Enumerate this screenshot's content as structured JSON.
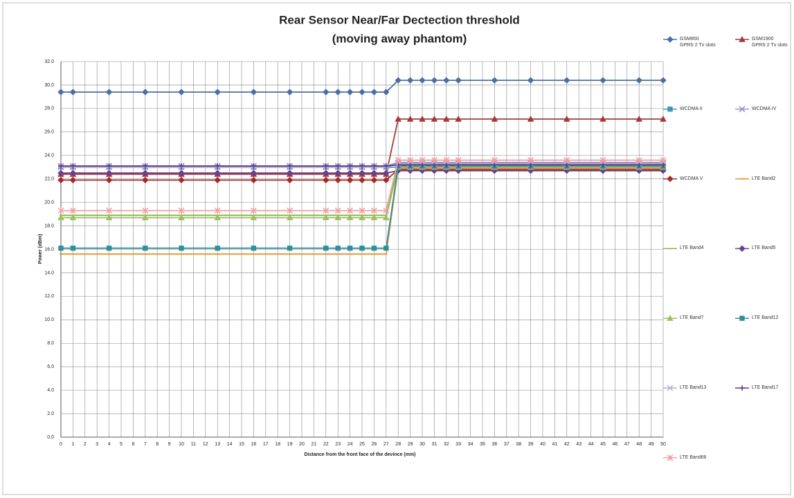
{
  "chart_data": {
    "type": "line",
    "title": "Rear Sensor Near/Far Dectection threshold",
    "subtitle": "(moving away phantom)",
    "x_label": "Distance  from the front face of the devince  (mm)",
    "y_label": "Power  (dBm)",
    "x": [
      0,
      1,
      4,
      7,
      10,
      13,
      16,
      19,
      22,
      23,
      24,
      25,
      26,
      27,
      28,
      29,
      30,
      31,
      32,
      33,
      36,
      39,
      42,
      45,
      48,
      50
    ],
    "xlim": [
      0,
      50
    ],
    "xticks": [
      0,
      1,
      2,
      3,
      4,
      5,
      6,
      7,
      8,
      9,
      10,
      11,
      12,
      13,
      14,
      15,
      16,
      17,
      18,
      19,
      20,
      21,
      22,
      23,
      24,
      25,
      26,
      27,
      28,
      29,
      30,
      31,
      32,
      33,
      34,
      35,
      36,
      37,
      38,
      39,
      40,
      41,
      42,
      43,
      44,
      45,
      46,
      47,
      48,
      49,
      50
    ],
    "ylim": [
      0,
      32
    ],
    "yticks": [
      {
        "value": 0,
        "label": "0.0"
      },
      {
        "value": 2,
        "label": "2.0"
      },
      {
        "value": 4,
        "label": "4.0"
      },
      {
        "value": 6,
        "label": "6.0"
      },
      {
        "value": 8,
        "label": "8.0"
      },
      {
        "value": 10,
        "label": "10.0"
      },
      {
        "value": 12,
        "label": "12.0"
      },
      {
        "value": 14,
        "label": "14.0"
      },
      {
        "value": 16,
        "label": "16.0"
      },
      {
        "value": 18,
        "label": "18.0"
      },
      {
        "value": 20,
        "label": "20.0"
      },
      {
        "value": 22,
        "label": "22.0"
      },
      {
        "value": 24,
        "label": "24.0"
      },
      {
        "value": 26,
        "label": "26.0"
      },
      {
        "value": 28,
        "label": "28.0"
      },
      {
        "value": 30,
        "label": "30.0"
      },
      {
        "value": 32,
        "label": "32.0"
      }
    ],
    "grid": true,
    "legend": "right",
    "series": [
      {
        "name": "GSM850\nGPRS 2 Tx slots",
        "color": "#4a6fa5",
        "marker": "diamond",
        "values": [
          29.4,
          29.4,
          29.4,
          29.4,
          29.4,
          29.4,
          29.4,
          29.4,
          29.4,
          29.4,
          29.4,
          29.4,
          29.4,
          29.4,
          30.4,
          30.4,
          30.4,
          30.4,
          30.4,
          30.4,
          30.4,
          30.4,
          30.4,
          30.4,
          30.4,
          30.4
        ]
      },
      {
        "name": "GSM1900\nGPRS 2 Tx slots",
        "color": "#a33a3a",
        "marker": "triangle",
        "values": [
          22.4,
          22.4,
          22.4,
          22.4,
          22.4,
          22.4,
          22.4,
          22.4,
          22.4,
          22.4,
          22.4,
          22.4,
          22.4,
          22.4,
          27.1,
          27.1,
          27.1,
          27.1,
          27.1,
          27.1,
          27.1,
          27.1,
          27.1,
          27.1,
          27.1,
          27.1
        ]
      },
      {
        "name": "WCDMA II",
        "color": "#3a9aa5",
        "marker": "square",
        "values": [
          23.0,
          23.0,
          23.0,
          23.0,
          23.0,
          23.0,
          23.0,
          23.0,
          23.0,
          23.0,
          23.0,
          23.0,
          23.0,
          23.0,
          23.0,
          23.0,
          23.0,
          23.0,
          23.0,
          23.0,
          23.0,
          23.0,
          23.0,
          23.0,
          23.0,
          23.0
        ]
      },
      {
        "name": "WCDMA IV",
        "color": "#9b8fc4",
        "marker": "x",
        "values": [
          23.1,
          23.1,
          23.1,
          23.1,
          23.1,
          23.1,
          23.1,
          23.1,
          23.1,
          23.1,
          23.1,
          23.1,
          23.1,
          23.1,
          23.4,
          23.4,
          23.4,
          23.4,
          23.4,
          23.4,
          23.4,
          23.4,
          23.4,
          23.4,
          23.4,
          23.4
        ]
      },
      {
        "name": "WCDMA V",
        "color": "#a52a2a",
        "marker": "diamond",
        "values": [
          21.9,
          21.9,
          21.9,
          21.9,
          21.9,
          21.9,
          21.9,
          21.9,
          21.9,
          21.9,
          21.9,
          21.9,
          21.9,
          21.9,
          22.8,
          22.8,
          22.8,
          22.8,
          22.8,
          22.8,
          22.8,
          22.8,
          22.8,
          22.8,
          22.8,
          22.8
        ]
      },
      {
        "name": "LTE Band2",
        "color": "#e8902a",
        "marker": "none",
        "values": [
          15.6,
          15.6,
          15.6,
          15.6,
          15.6,
          15.6,
          15.6,
          15.6,
          15.6,
          15.6,
          15.6,
          15.6,
          15.6,
          15.6,
          22.9,
          22.9,
          22.9,
          22.9,
          22.9,
          22.9,
          22.9,
          22.9,
          22.9,
          22.9,
          22.9,
          22.9
        ]
      },
      {
        "name": "LTE Band4",
        "color": "#8ab040",
        "marker": "none",
        "values": [
          18.9,
          18.9,
          18.9,
          18.9,
          18.9,
          18.9,
          18.9,
          18.9,
          18.9,
          18.9,
          18.9,
          18.9,
          18.9,
          18.9,
          23.2,
          23.2,
          23.2,
          23.2,
          23.2,
          23.2,
          23.2,
          23.2,
          23.2,
          23.2,
          23.2,
          23.2
        ]
      },
      {
        "name": "LTE Band5",
        "color": "#6a3f8f",
        "marker": "diamond",
        "values": [
          22.5,
          22.5,
          22.5,
          22.5,
          22.5,
          22.5,
          22.5,
          22.5,
          22.5,
          22.5,
          22.5,
          22.5,
          22.5,
          22.5,
          22.7,
          22.7,
          22.7,
          22.7,
          22.7,
          22.7,
          22.7,
          22.7,
          22.7,
          22.7,
          22.7,
          22.7
        ]
      },
      {
        "name": "LTE Band7",
        "color": "#9ac060",
        "marker": "triangle",
        "values": [
          18.7,
          18.7,
          18.7,
          18.7,
          18.7,
          18.7,
          18.7,
          18.7,
          18.7,
          18.7,
          18.7,
          18.7,
          18.7,
          18.7,
          23.0,
          23.0,
          23.0,
          23.0,
          23.0,
          23.0,
          23.0,
          23.0,
          23.0,
          23.0,
          23.0,
          23.0
        ]
      },
      {
        "name": "LTE Band12",
        "color": "#2f8f9f",
        "marker": "square",
        "values": [
          16.1,
          16.1,
          16.1,
          16.1,
          16.1,
          16.1,
          16.1,
          16.1,
          16.1,
          16.1,
          16.1,
          16.1,
          16.1,
          16.1,
          23.1,
          23.1,
          23.1,
          23.1,
          23.1,
          23.1,
          23.1,
          23.1,
          23.1,
          23.1,
          23.1,
          23.1
        ]
      },
      {
        "name": "LTE Band13",
        "color": "#b8a8d8",
        "marker": "x",
        "values": [
          23.0,
          23.0,
          23.0,
          23.0,
          23.0,
          23.0,
          23.0,
          23.0,
          23.0,
          23.0,
          23.0,
          23.0,
          23.0,
          23.0,
          23.3,
          23.3,
          23.3,
          23.3,
          23.3,
          23.3,
          23.3,
          23.3,
          23.3,
          23.3,
          23.3,
          23.3
        ]
      },
      {
        "name": "LTE Band17",
        "color": "#5a3a8a",
        "marker": "plus",
        "values": [
          23.1,
          23.1,
          23.1,
          23.1,
          23.1,
          23.1,
          23.1,
          23.1,
          23.1,
          23.1,
          23.1,
          23.1,
          23.1,
          23.1,
          23.2,
          23.2,
          23.2,
          23.2,
          23.2,
          23.2,
          23.2,
          23.2,
          23.2,
          23.2,
          23.2,
          23.2
        ]
      },
      {
        "name": "LTE Band66",
        "color": "#f0a0a0",
        "marker": "star",
        "values": [
          19.3,
          19.3,
          19.3,
          19.3,
          19.3,
          19.3,
          19.3,
          19.3,
          19.3,
          19.3,
          19.3,
          19.3,
          19.3,
          19.3,
          23.6,
          23.6,
          23.6,
          23.6,
          23.6,
          23.6,
          23.6,
          23.6,
          23.6,
          23.6,
          23.6,
          23.6
        ]
      }
    ]
  }
}
